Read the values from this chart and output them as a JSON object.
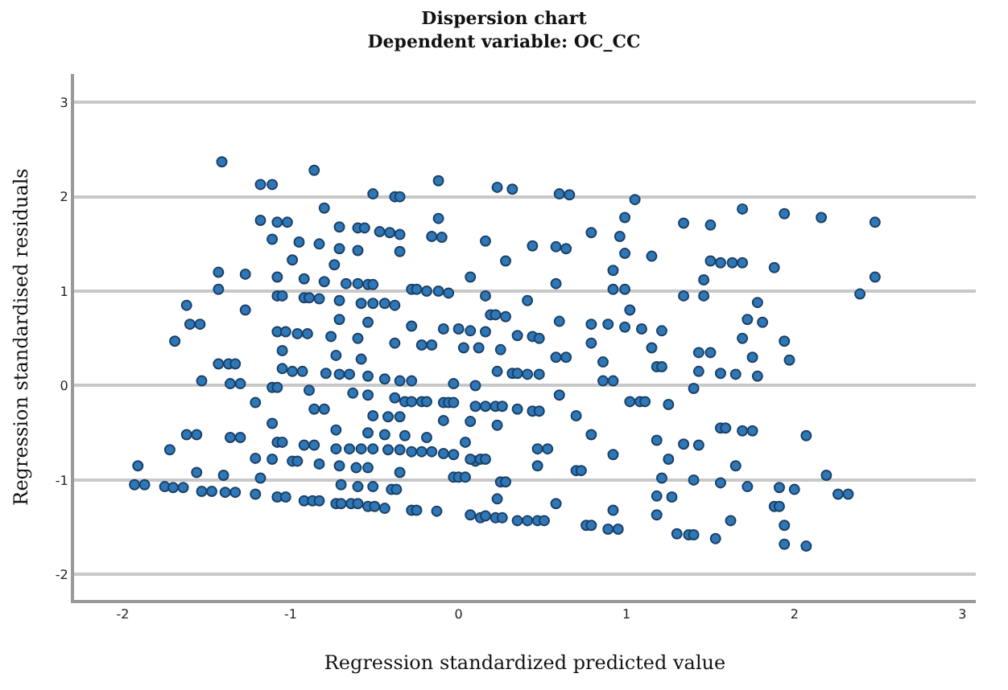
{
  "chart_data": {
    "type": "scatter",
    "title": "Dispersion chart",
    "subtitle": "Dependent variable: OC_CC",
    "xlabel": "Regression standardized predicted value",
    "ylabel": "Regression standardised residuals",
    "xlim": [
      -2.29,
      3.08
    ],
    "ylim": [
      -2.27,
      3.3
    ],
    "xticks": [
      -2,
      -1,
      0,
      1,
      2,
      3
    ],
    "yticks": [
      -2,
      -1,
      0,
      1,
      2,
      3
    ],
    "grid": "y",
    "marker": "circle",
    "series": [
      {
        "color": "#2e78b7",
        "x": [
          -1.41,
          -1.18,
          -1.11,
          -0.86,
          -0.8,
          -1.18,
          -1.08,
          -1.02,
          -1.11,
          -0.95,
          -0.83,
          -0.71,
          -0.71,
          -0.6,
          -0.56,
          -0.6,
          -0.51,
          -0.38,
          -0.35,
          -0.47,
          -0.41,
          -0.35,
          -0.35,
          -0.12,
          -0.12,
          -0.16,
          -0.1,
          0.23,
          0.32,
          0.16,
          0.28,
          0.44,
          -1.43,
          -1.43,
          -1.27,
          -1.27,
          -1.62,
          -1.6,
          -1.54,
          -1.69,
          -1.08,
          -1.08,
          -1.05,
          -0.99,
          -0.92,
          -0.92,
          -0.89,
          -0.83,
          -0.8,
          -0.74,
          -0.71,
          -0.67,
          -0.6,
          -0.58,
          -0.54,
          -0.51,
          -0.51,
          -0.44,
          -0.38,
          -0.28,
          -0.25,
          -0.19,
          -0.12,
          -0.06,
          0.07,
          0.16,
          0.19,
          0.22,
          0.28,
          0.41,
          -0.71,
          -0.54,
          -0.28,
          -1.08,
          -1.03,
          -0.96,
          -0.9,
          -0.76,
          -0.6,
          -0.09,
          0.0,
          0.07,
          0.16,
          0.35,
          0.44,
          -0.38,
          -0.22,
          -0.16,
          0.03,
          0.12,
          0.25,
          0.6,
          0.66,
          1.05,
          0.99,
          1.34,
          1.5,
          1.69,
          1.94,
          2.16,
          2.48,
          0.58,
          0.64,
          0.79,
          0.96,
          0.99,
          1.15,
          1.5,
          1.56,
          1.63,
          1.69,
          1.88,
          0.92,
          0.58,
          1.46,
          2.48,
          0.92,
          0.99,
          1.34,
          1.46,
          2.39,
          1.78,
          1.02,
          1.72,
          1.81,
          0.6,
          0.79,
          0.89,
          0.99,
          1.09,
          1.21,
          0.48,
          0.79,
          1.15,
          1.69,
          1.94,
          1.43,
          1.5,
          1.97,
          1.75,
          0.58,
          0.64,
          0.86,
          1.18,
          1.21,
          1.43,
          1.56,
          1.65,
          1.78,
          0.23,
          0.32,
          0.35,
          0.41,
          0.48,
          0.86,
          0.92,
          0.1,
          1.4,
          0.6,
          1.02,
          1.08,
          1.11,
          1.25,
          0.1,
          0.16,
          0.22,
          0.26,
          0.35,
          0.44,
          0.48,
          0.7,
          0.23,
          0.79,
          1.56,
          1.59,
          1.69,
          1.75,
          2.07,
          1.18,
          1.34,
          1.43,
          0.47,
          0.53,
          0.92,
          0.1,
          1.25,
          0.47,
          0.7,
          0.73,
          1.65,
          2.19,
          1.21,
          1.4,
          0.25,
          0.28,
          1.56,
          1.72,
          1.91,
          2.0,
          2.26,
          2.32,
          1.18,
          1.27,
          0.23,
          0.58,
          1.88,
          1.91,
          0.92,
          1.18,
          0.13,
          0.22,
          0.26,
          0.35,
          0.41,
          0.47,
          0.51,
          1.62,
          1.94,
          0.76,
          0.79,
          0.89,
          0.95,
          1.3,
          1.37,
          1.4,
          1.53,
          1.94,
          2.07,
          -1.43,
          -1.37,
          -1.33,
          -1.53,
          -1.36,
          -1.3,
          -1.11,
          -1.08,
          -1.05,
          -0.99,
          -0.93,
          -1.05,
          -0.79,
          -0.71,
          -0.65,
          -0.73,
          -0.58,
          -0.54,
          -0.44,
          -0.35,
          -0.28,
          -0.03,
          -0.89,
          -0.63,
          -0.54,
          -0.38,
          -0.32,
          -0.28,
          -0.22,
          -0.19,
          -0.09,
          -0.06,
          -0.03,
          -1.21,
          -0.86,
          -0.8,
          -0.51,
          -0.42,
          -0.35,
          -0.09,
          0.07,
          -1.11,
          -0.73,
          -0.54,
          -0.44,
          -0.32,
          -0.19,
          0.04,
          -1.62,
          -1.56,
          -1.36,
          -1.3,
          -1.08,
          -1.05,
          -0.92,
          -0.86,
          -0.73,
          -0.65,
          -0.58,
          -0.51,
          -0.42,
          -0.35,
          -0.28,
          -0.22,
          -0.16,
          -0.09,
          -0.03,
          0.07,
          0.13,
          0.16,
          -1.72,
          -1.21,
          -1.11,
          -0.99,
          -0.96,
          -0.83,
          -0.71,
          -0.61,
          -0.54,
          -0.35,
          -1.91,
          -1.56,
          -1.4,
          -1.18,
          -0.03,
          0.0,
          0.04,
          -1.93,
          -1.87,
          -1.75,
          -1.7,
          -1.64,
          -1.53,
          -1.47,
          -1.39,
          -1.33,
          -1.21,
          -1.08,
          -1.03,
          -0.7,
          -0.6,
          -0.51,
          -0.4,
          -0.37,
          -0.92,
          -0.87,
          -0.83,
          -0.73,
          -0.7,
          -0.64,
          -0.6,
          -0.54,
          -0.5,
          -0.44,
          -0.28,
          -0.25,
          -0.13,
          0.07,
          0.16
        ],
        "values": [
          2.37,
          2.13,
          2.13,
          2.28,
          1.88,
          1.75,
          1.73,
          1.73,
          1.55,
          1.52,
          1.5,
          1.68,
          1.45,
          1.67,
          1.67,
          1.43,
          2.03,
          2.0,
          2.0,
          1.63,
          1.62,
          1.6,
          1.42,
          2.17,
          1.77,
          1.58,
          1.57,
          2.1,
          2.08,
          1.53,
          1.32,
          1.48,
          1.2,
          1.02,
          1.18,
          0.8,
          0.85,
          0.65,
          0.65,
          0.47,
          1.15,
          0.95,
          0.95,
          1.33,
          1.13,
          0.93,
          0.93,
          0.92,
          1.1,
          1.28,
          0.9,
          1.08,
          1.08,
          0.87,
          1.07,
          1.07,
          0.87,
          0.87,
          0.85,
          1.02,
          1.02,
          1.0,
          1.0,
          0.98,
          1.15,
          0.95,
          0.75,
          0.75,
          0.73,
          0.9,
          0.7,
          0.67,
          0.63,
          0.57,
          0.57,
          0.55,
          0.55,
          0.52,
          0.5,
          0.6,
          0.6,
          0.58,
          0.57,
          0.53,
          0.52,
          0.45,
          0.43,
          0.43,
          0.4,
          0.4,
          0.38,
          2.03,
          2.02,
          1.97,
          1.78,
          1.72,
          1.7,
          1.87,
          1.82,
          1.78,
          1.73,
          1.47,
          1.45,
          1.62,
          1.58,
          1.4,
          1.37,
          1.32,
          1.3,
          1.3,
          1.3,
          1.25,
          1.22,
          1.08,
          1.12,
          1.15,
          1.02,
          1.02,
          0.95,
          0.95,
          0.97,
          0.88,
          0.8,
          0.7,
          0.67,
          0.68,
          0.65,
          0.65,
          0.62,
          0.6,
          0.58,
          0.5,
          0.45,
          0.4,
          0.5,
          0.47,
          0.35,
          0.35,
          0.27,
          0.3,
          0.3,
          0.3,
          0.25,
          0.2,
          0.2,
          0.15,
          0.13,
          0.12,
          0.1,
          0.15,
          0.13,
          0.13,
          0.12,
          0.12,
          0.05,
          0.05,
          0.0,
          -0.03,
          -0.1,
          -0.17,
          -0.17,
          -0.17,
          -0.2,
          -0.22,
          -0.22,
          -0.22,
          -0.22,
          -0.25,
          -0.27,
          -0.27,
          -0.32,
          -0.42,
          -0.52,
          -0.45,
          -0.45,
          -0.48,
          -0.48,
          -0.53,
          -0.58,
          -0.62,
          -0.63,
          -0.67,
          -0.67,
          -0.73,
          -0.8,
          -0.78,
          -0.85,
          -0.9,
          -0.9,
          -0.85,
          -0.95,
          -0.98,
          -1.0,
          -1.02,
          -1.02,
          -1.03,
          -1.07,
          -1.08,
          -1.1,
          -1.15,
          -1.15,
          -1.17,
          -1.18,
          -1.2,
          -1.25,
          -1.28,
          -1.28,
          -1.32,
          -1.37,
          -1.4,
          -1.4,
          -1.4,
          -1.43,
          -1.43,
          -1.43,
          -1.43,
          -1.43,
          -1.48,
          -1.48,
          -1.48,
          -1.52,
          -1.52,
          -1.57,
          -1.58,
          -1.58,
          -1.62,
          -1.68,
          -1.7,
          0.23,
          0.23,
          0.23,
          0.05,
          0.02,
          0.02,
          -0.02,
          -0.02,
          0.18,
          0.15,
          0.15,
          0.37,
          0.13,
          0.12,
          0.12,
          0.32,
          0.28,
          0.1,
          0.07,
          0.05,
          0.05,
          0.02,
          -0.05,
          -0.08,
          -0.1,
          -0.13,
          -0.17,
          -0.17,
          -0.17,
          -0.17,
          -0.18,
          -0.18,
          -0.18,
          -0.18,
          -0.25,
          -0.25,
          -0.32,
          -0.33,
          -0.33,
          -0.37,
          -0.38,
          -0.4,
          -0.47,
          -0.5,
          -0.52,
          -0.53,
          -0.55,
          -0.6,
          -0.52,
          -0.52,
          -0.55,
          -0.55,
          -0.6,
          -0.6,
          -0.63,
          -0.63,
          -0.67,
          -0.67,
          -0.67,
          -0.67,
          -0.68,
          -0.68,
          -0.7,
          -0.7,
          -0.7,
          -0.72,
          -0.73,
          -0.78,
          -0.78,
          -0.78,
          -0.68,
          -0.77,
          -0.78,
          -0.8,
          -0.8,
          -0.83,
          -0.85,
          -0.87,
          -0.87,
          -0.92,
          -0.85,
          -0.92,
          -0.95,
          -0.98,
          -0.97,
          -0.97,
          -0.97,
          -1.05,
          -1.05,
          -1.07,
          -1.08,
          -1.08,
          -1.12,
          -1.12,
          -1.13,
          -1.13,
          -1.15,
          -1.18,
          -1.18,
          -1.05,
          -1.07,
          -1.07,
          -1.1,
          -1.1,
          -1.22,
          -1.22,
          -1.22,
          -1.25,
          -1.25,
          -1.25,
          -1.25,
          -1.28,
          -1.28,
          -1.3,
          -1.32,
          -1.32,
          -1.33,
          -1.37,
          -1.38
        ]
      }
    ]
  }
}
